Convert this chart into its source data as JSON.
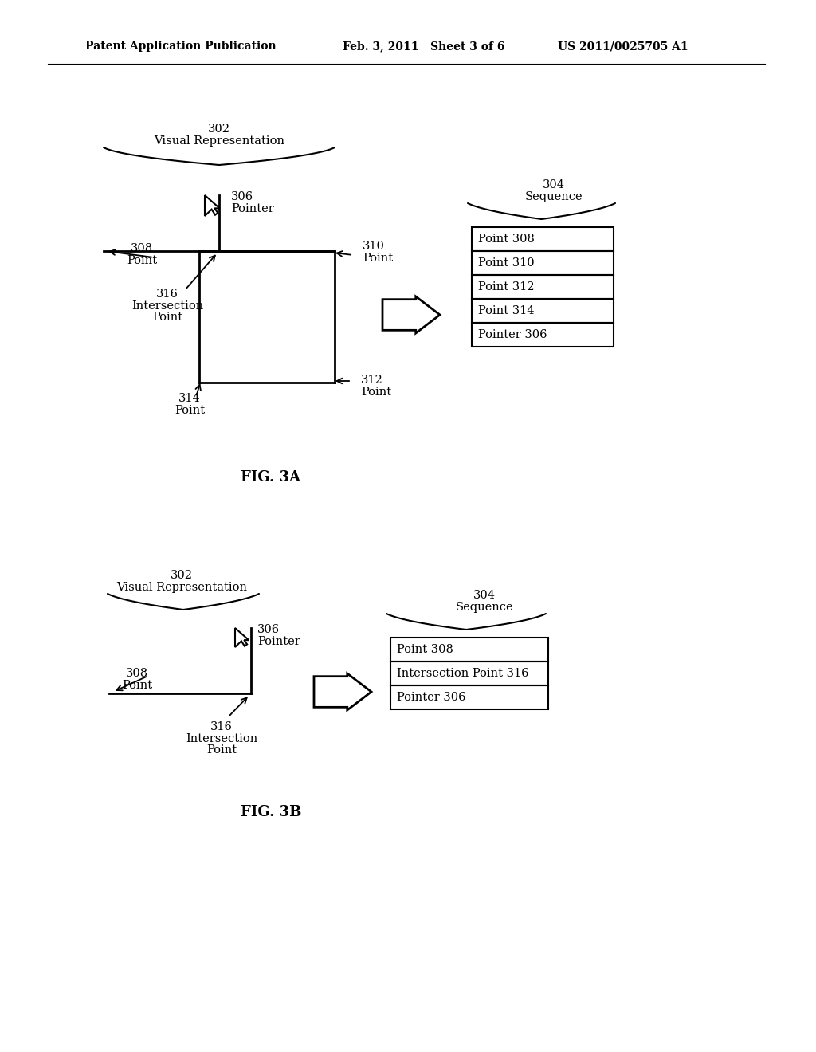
{
  "bg_color": "#ffffff",
  "header_left": "Patent Application Publication",
  "header_mid": "Feb. 3, 2011   Sheet 3 of 6",
  "header_right": "US 2011/0025705 A1",
  "fig3a": {
    "label": "FIG. 3A",
    "vr_label_num": "302",
    "vr_label_txt": "Visual Representation",
    "seq_label_num": "304",
    "seq_label_txt": "Sequence",
    "table_rows": [
      "Point 308",
      "Point 310",
      "Point 312",
      "Point 314",
      "Pointer 306"
    ]
  },
  "fig3b": {
    "label": "FIG. 3B",
    "vr_label_num": "302",
    "vr_label_txt": "Visual Representation",
    "seq_label_num": "304",
    "seq_label_txt": "Sequence",
    "table_rows": [
      "Point 308",
      "Intersection Point 316",
      "Pointer 306"
    ]
  }
}
